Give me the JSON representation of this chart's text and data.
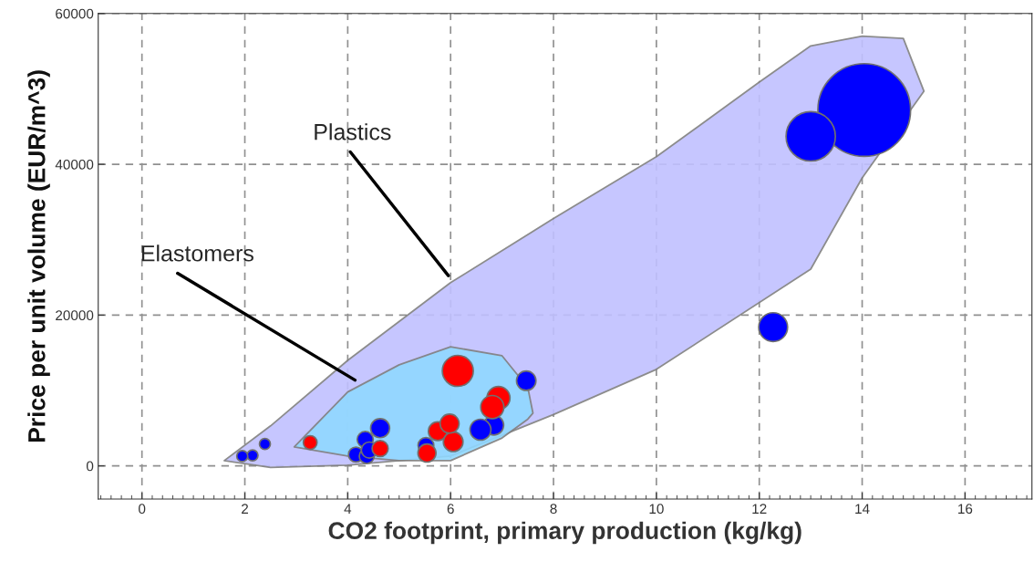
{
  "chart_data": {
    "type": "bubble",
    "xlabel": "CO2 footprint, primary production (kg/kg)",
    "ylabel": "Price per unit volume (EUR/m^3)",
    "xlim": [
      -0.85,
      17.3
    ],
    "ylim": [
      -4400,
      60000
    ],
    "xticks": [
      0,
      2,
      4,
      6,
      8,
      10,
      12,
      14,
      16
    ],
    "yticks": [
      0,
      20000,
      40000,
      60000
    ],
    "grid": true,
    "annotations": [
      "Plastics",
      "Elastomers"
    ],
    "series": [
      {
        "type": "area",
        "color": "#c0c0ff",
        "x": [
          1.6,
          2.5,
          4,
          6,
          8,
          10,
          12,
          13,
          14,
          14.8,
          15.2,
          14,
          13,
          10,
          8,
          6,
          4,
          2.5
        ],
        "values": [
          700,
          5300,
          14000,
          24300,
          32800,
          41000,
          50900,
          55700,
          57000,
          56700,
          49700,
          38200,
          26100,
          12800,
          6800,
          1300,
          100,
          -200
        ]
      },
      {
        "type": "area",
        "color": "#90d8ff",
        "x": [
          2.96,
          4,
          5,
          6,
          7,
          7.5,
          7.6,
          7.5,
          7,
          6,
          5,
          4
        ],
        "values": [
          2500,
          9800,
          13400,
          15800,
          14600,
          10400,
          7000,
          6200,
          3700,
          700,
          700,
          1300
        ]
      },
      {
        "color": "#0000ff",
        "x": [
          14.04,
          13.0,
          12.27,
          7.47,
          6.84,
          6.58,
          5.52,
          4.63,
          4.34,
          4.16,
          4.37,
          4.42,
          2.39,
          2.15,
          1.95
        ],
        "values": [
          47200,
          43700,
          18400,
          11300,
          5400,
          4800,
          2700,
          5000,
          3500,
          1500,
          1300,
          2100,
          2900,
          1400,
          1300
        ],
        "sizes": [
          1,
          0.283,
          0.097,
          0.044,
          0.045,
          0.051,
          0.029,
          0.042,
          0.03,
          0.026,
          0.026,
          0.03,
          0.014,
          0.014,
          0.014
        ]
      },
      {
        "color": "#ff0000",
        "x": [
          6.14,
          3.27,
          6.93,
          6.81,
          5.75,
          6.05,
          5.54,
          5.98,
          4.63
        ],
        "values": [
          12600,
          3100,
          9000,
          7800,
          4600,
          3200,
          1700,
          5600,
          2300
        ],
        "sizes": [
          0.112,
          0.022,
          0.062,
          0.062,
          0.041,
          0.045,
          0.038,
          0.042,
          0.03
        ]
      }
    ]
  }
}
